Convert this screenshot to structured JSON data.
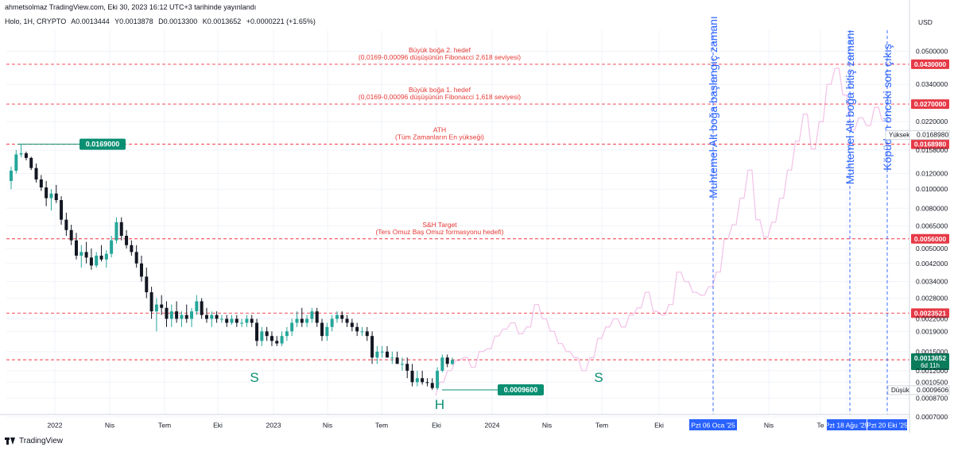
{
  "header": {
    "publish_line": "ahmetsolmaz TradingView.com, Eki 30, 2023 16:12 UTC+3 tarihinde yayınlandı",
    "symbol": "Holo, 1H, CRYPTO",
    "open": "A0.0013444",
    "high": "Y0.0013878",
    "low": "D0.0013300",
    "close": "K0.0013652",
    "change": "+0.0000221 (+1.65%)"
  },
  "footer": {
    "brand": "TradingView"
  },
  "chart_data": {
    "type": "line",
    "title": "Holo, 1H, CRYPTO",
    "scale": "log",
    "currency": "USD",
    "ylim": [
      0.00072,
      0.064
    ],
    "x_ticks": [
      "2022",
      "Nis",
      "Tem",
      "Eki",
      "2023",
      "Nis",
      "Tem",
      "Eki",
      "2024",
      "Nis",
      "Tem",
      "Eki",
      "Pzt 06 Oca '25",
      "Nis",
      "Te",
      "Pzt 18 Ağu '25",
      "Pzt 20 Eki '25"
    ],
    "y_ticks": [
      0.05,
      0.034,
      0.022,
      0.0158,
      0.012,
      0.01,
      0.008,
      0.0065,
      0.005,
      0.0042,
      0.0034,
      0.0028,
      0.0022,
      0.0019,
      0.0015,
      0.0012,
      0.00105,
      0.00087,
      0.0007
    ],
    "price_markers": {
      "current": {
        "value": "0.0013652",
        "countdown": "6d 11h"
      },
      "high": {
        "label": "Yüksek",
        "value": "0.0168980"
      },
      "low": {
        "label": "Düşük",
        "value": "0.0009606"
      }
    },
    "levels": [
      {
        "value": 0.043,
        "label": "0.0430000",
        "text": [
          "Büyük boğa 2. hedef",
          "(0,0169-0,00096 düşüşünün Fibonacci 2,618 seviyesi)"
        ]
      },
      {
        "value": 0.027,
        "label": "0.0270000",
        "text": [
          "Büyük boğa 1. hedef",
          "(0,0169-0,00096 düşüşünün Fibonacci 1,618 seviyesi)"
        ]
      },
      {
        "value": 0.016898,
        "label": "0.0168980",
        "text": [
          "ATH",
          "(Tüm Zamanların En yükseği)"
        ]
      },
      {
        "value": 0.0056,
        "label": "0.0056000",
        "text": [
          "S&H Target",
          "(Ters Omuz Baş Omuz formasyonu hedefi)"
        ]
      },
      {
        "value": 0.0023521,
        "label": "0.0023521",
        "text": []
      },
      {
        "value": 0.0013635,
        "label": "0.0013635",
        "text": []
      }
    ],
    "annotations": {
      "ath_price": "0.0169000",
      "low_price": "0.0009600",
      "shoulder_left": "S",
      "head": "H",
      "shoulder_right": "S",
      "vline_1": "Muhtemel Alt boğa başlangıç zamanı",
      "vline_2": "Muhtemel Alt boğa bitiş zamanı",
      "vline_3": "Köpüden önceki son çıkış"
    },
    "candles": [
      [
        0.011,
        0.013,
        0.01,
        0.0124
      ],
      [
        0.0124,
        0.0158,
        0.012,
        0.015
      ],
      [
        0.015,
        0.0169,
        0.0145,
        0.0152
      ],
      [
        0.0152,
        0.0155,
        0.014,
        0.0144
      ],
      [
        0.0144,
        0.0146,
        0.0125,
        0.0128
      ],
      [
        0.0128,
        0.0135,
        0.0108,
        0.0112
      ],
      [
        0.0112,
        0.0118,
        0.0098,
        0.0102
      ],
      [
        0.0102,
        0.011,
        0.0082,
        0.009
      ],
      [
        0.009,
        0.01,
        0.0078,
        0.0095
      ],
      [
        0.0095,
        0.0105,
        0.0085,
        0.0088
      ],
      [
        0.0088,
        0.0092,
        0.0066,
        0.007
      ],
      [
        0.007,
        0.0076,
        0.0058,
        0.0062
      ],
      [
        0.0062,
        0.0066,
        0.0052,
        0.0055
      ],
      [
        0.0055,
        0.006,
        0.0044,
        0.0046
      ],
      [
        0.0046,
        0.0052,
        0.004,
        0.0048
      ],
      [
        0.0048,
        0.0054,
        0.0042,
        0.0045
      ],
      [
        0.0045,
        0.005,
        0.0039,
        0.0041
      ],
      [
        0.0041,
        0.0048,
        0.004,
        0.0046
      ],
      [
        0.0046,
        0.0052,
        0.0043,
        0.0044
      ],
      [
        0.0044,
        0.0049,
        0.004,
        0.0047
      ],
      [
        0.0047,
        0.0058,
        0.0045,
        0.0055
      ],
      [
        0.0055,
        0.0072,
        0.0053,
        0.0068
      ],
      [
        0.0068,
        0.0072,
        0.0055,
        0.0058
      ],
      [
        0.0058,
        0.0062,
        0.005,
        0.0052
      ],
      [
        0.0052,
        0.0055,
        0.0046,
        0.0048
      ],
      [
        0.0048,
        0.0052,
        0.004,
        0.0042
      ],
      [
        0.0042,
        0.0046,
        0.0034,
        0.0036
      ],
      [
        0.0036,
        0.004,
        0.0028,
        0.003
      ],
      [
        0.003,
        0.0032,
        0.0022,
        0.0024
      ],
      [
        0.0024,
        0.0028,
        0.0019,
        0.0026
      ],
      [
        0.0026,
        0.0029,
        0.0023,
        0.0025
      ],
      [
        0.0025,
        0.0027,
        0.002,
        0.0022
      ],
      [
        0.0022,
        0.0026,
        0.002,
        0.0024
      ],
      [
        0.0024,
        0.0027,
        0.0021,
        0.0022
      ],
      [
        0.0022,
        0.0024,
        0.002,
        0.0023
      ],
      [
        0.0023,
        0.0026,
        0.0021,
        0.0022
      ],
      [
        0.0022,
        0.0025,
        0.002,
        0.0024
      ],
      [
        0.0024,
        0.0029,
        0.0023,
        0.0027
      ],
      [
        0.0027,
        0.0028,
        0.0022,
        0.0023
      ],
      [
        0.0023,
        0.0025,
        0.0021,
        0.0022
      ],
      [
        0.0022,
        0.0024,
        0.002,
        0.0023
      ],
      [
        0.0023,
        0.0024,
        0.0021,
        0.0022
      ],
      [
        0.0022,
        0.0023,
        0.0021,
        0.0022
      ],
      [
        0.0022,
        0.0023,
        0.002,
        0.0021
      ],
      [
        0.0021,
        0.0023,
        0.00205,
        0.0022
      ],
      [
        0.0022,
        0.0023,
        0.002,
        0.0021
      ],
      [
        0.0021,
        0.0022,
        0.002,
        0.0021
      ],
      [
        0.0021,
        0.0023,
        0.002,
        0.0022
      ],
      [
        0.0022,
        0.0023,
        0.002,
        0.0021
      ],
      [
        0.0021,
        0.0022,
        0.0016,
        0.0017
      ],
      [
        0.0017,
        0.002,
        0.0016,
        0.0019
      ],
      [
        0.0019,
        0.002,
        0.0017,
        0.0018
      ],
      [
        0.0018,
        0.0019,
        0.0016,
        0.0017
      ],
      [
        0.0017,
        0.0018,
        0.0016,
        0.00165
      ],
      [
        0.00165,
        0.0019,
        0.0016,
        0.0018
      ],
      [
        0.0018,
        0.002,
        0.0017,
        0.0019
      ],
      [
        0.0019,
        0.0022,
        0.0018,
        0.0021
      ],
      [
        0.0021,
        0.0024,
        0.002,
        0.0022
      ],
      [
        0.0022,
        0.0025,
        0.002,
        0.0021
      ],
      [
        0.0021,
        0.0023,
        0.002,
        0.0022
      ],
      [
        0.0022,
        0.0025,
        0.0021,
        0.0024
      ],
      [
        0.0024,
        0.0025,
        0.002,
        0.0021
      ],
      [
        0.0021,
        0.0022,
        0.0017,
        0.0018
      ],
      [
        0.0018,
        0.0021,
        0.0017,
        0.002
      ],
      [
        0.002,
        0.0023,
        0.0019,
        0.0022
      ],
      [
        0.0022,
        0.0024,
        0.0021,
        0.0023
      ],
      [
        0.0023,
        0.0024,
        0.0021,
        0.0022
      ],
      [
        0.0022,
        0.0023,
        0.002,
        0.0021
      ],
      [
        0.0021,
        0.0022,
        0.0019,
        0.002
      ],
      [
        0.002,
        0.0021,
        0.0018,
        0.0019
      ],
      [
        0.0019,
        0.002,
        0.0018,
        0.0019
      ],
      [
        0.0019,
        0.002,
        0.0017,
        0.0018
      ],
      [
        0.0018,
        0.0019,
        0.0013,
        0.0014
      ],
      [
        0.0014,
        0.0016,
        0.0013,
        0.0015
      ],
      [
        0.0015,
        0.0016,
        0.0014,
        0.0015
      ],
      [
        0.0015,
        0.0016,
        0.0014,
        0.0014
      ],
      [
        0.0014,
        0.0015,
        0.0013,
        0.0014
      ],
      [
        0.0014,
        0.0015,
        0.0013,
        0.0013
      ],
      [
        0.0013,
        0.0014,
        0.0012,
        0.0013
      ],
      [
        0.0013,
        0.0014,
        0.0011,
        0.0012
      ],
      [
        0.0012,
        0.0013,
        0.001,
        0.00105
      ],
      [
        0.00105,
        0.0012,
        0.001,
        0.0011
      ],
      [
        0.0011,
        0.0012,
        0.00102,
        0.00105
      ],
      [
        0.00105,
        0.0011,
        0.001,
        0.00104
      ],
      [
        0.00104,
        0.0011,
        0.00096,
        0.00098
      ],
      [
        0.00098,
        0.00125,
        0.00096,
        0.0012
      ],
      [
        0.0012,
        0.00145,
        0.00118,
        0.0014
      ],
      [
        0.0014,
        0.00145,
        0.00125,
        0.0013
      ],
      [
        0.0013,
        0.0014,
        0.00128,
        0.00136
      ]
    ],
    "projection": [
      [
        0.0009,
        0.00105
      ],
      [
        0.00105,
        0.0012
      ],
      [
        0.0012,
        0.00135
      ],
      [
        0.00135,
        0.0014
      ],
      [
        0.0014,
        0.00125
      ],
      [
        0.00125,
        0.0015
      ],
      [
        0.0015,
        0.00155
      ],
      [
        0.00155,
        0.0018
      ],
      [
        0.0018,
        0.00195
      ],
      [
        0.00195,
        0.0021
      ],
      [
        0.0021,
        0.00185
      ],
      [
        0.00185,
        0.002
      ],
      [
        0.002,
        0.0026
      ],
      [
        0.0026,
        0.0022
      ],
      [
        0.0022,
        0.0019
      ],
      [
        0.0019,
        0.00165
      ],
      [
        0.00165,
        0.0015
      ],
      [
        0.0015,
        0.0014
      ],
      [
        0.0014,
        0.0012
      ],
      [
        0.0012,
        0.0014
      ],
      [
        0.0014,
        0.00175
      ],
      [
        0.00175,
        0.002
      ],
      [
        0.002,
        0.0022
      ],
      [
        0.0022,
        0.002
      ],
      [
        0.002,
        0.0023
      ],
      [
        0.0023,
        0.0025
      ],
      [
        0.0025,
        0.003
      ],
      [
        0.003,
        0.0024
      ],
      [
        0.0024,
        0.0023
      ],
      [
        0.0023,
        0.0026
      ],
      [
        0.0026,
        0.0038
      ],
      [
        0.0038,
        0.0034
      ],
      [
        0.0034,
        0.003
      ],
      [
        0.003,
        0.0029
      ],
      [
        0.0029,
        0.0032
      ],
      [
        0.0032,
        0.0038
      ],
      [
        0.0038,
        0.0056
      ],
      [
        0.0056,
        0.0066
      ],
      [
        0.0066,
        0.009
      ],
      [
        0.009,
        0.0125
      ],
      [
        0.0125,
        0.007
      ],
      [
        0.007,
        0.0057
      ],
      [
        0.0057,
        0.0068
      ],
      [
        0.0068,
        0.009
      ],
      [
        0.009,
        0.0125
      ],
      [
        0.0125,
        0.0175
      ],
      [
        0.0175,
        0.024
      ],
      [
        0.024,
        0.016
      ],
      [
        0.016,
        0.022
      ],
      [
        0.022,
        0.034
      ],
      [
        0.034,
        0.041
      ],
      [
        0.041,
        0.03
      ],
      [
        0.03,
        0.02
      ],
      [
        0.02,
        0.023
      ],
      [
        0.023,
        0.021
      ],
      [
        0.021,
        0.026
      ],
      [
        0.026,
        0.022
      ]
    ]
  },
  "colors": {
    "up": "#26a69a",
    "down": "#131722",
    "level_line": "#f23645",
    "annotation_text": "#e53935",
    "label_bg": "#e63946",
    "current_bg": "#0a7c5c",
    "marker_green": "#0a8f72",
    "vline": "#2962ff",
    "projection": "#f3c6e9",
    "axis_text": "#131722",
    "time_highlight": "#2962ff",
    "grid": "#f0f3fa"
  }
}
